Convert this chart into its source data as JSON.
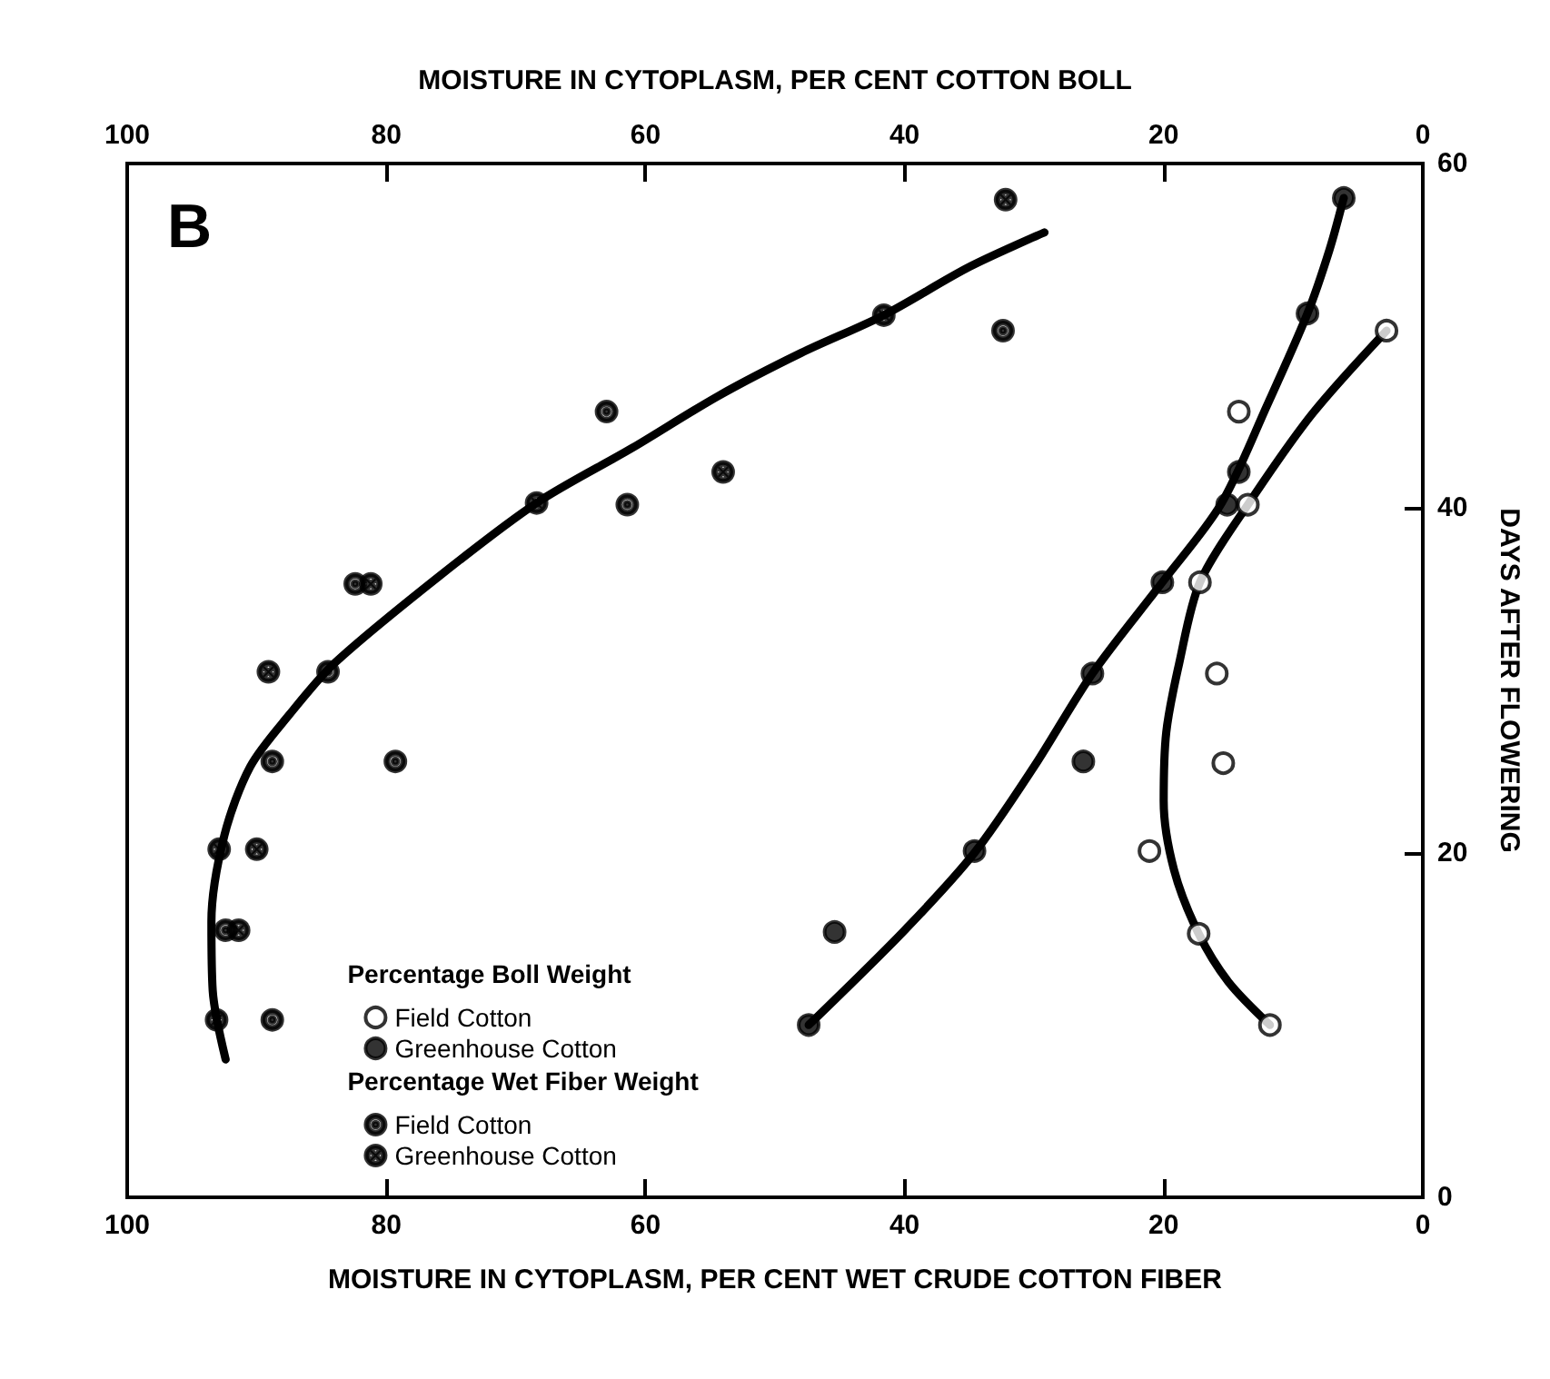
{
  "chart_data": {
    "type": "scatter",
    "xlabel": "MOISTURE IN CYTOPLASM, PER CENT WET CRUDE COTTON FIBER",
    "x2label": "MOISTURE IN CYTOPLASM, PER CENT COTTON BOLL",
    "ylabel": "DAYS AFTER FLOWERING",
    "xlim": [
      100,
      0
    ],
    "xticks": [
      100,
      80,
      60,
      40,
      20,
      0
    ],
    "x2lim": [
      100,
      0
    ],
    "x2ticks": [
      100,
      80,
      60,
      40,
      20,
      0
    ],
    "ylim": [
      0,
      60
    ],
    "yticks": [
      0,
      20,
      40,
      60
    ],
    "annotations": [
      "B"
    ],
    "legend_title": [
      "Percentage Boll Weight",
      "Percentage Wet Fiber Weight"
    ],
    "legend": "bottom left",
    "grid": false,
    "series": [
      {
        "name": "Field Cotton",
        "axis": "x2",
        "marker": "circle-open",
        "color": "#000000",
        "x": [
          2.8,
          14.2,
          13.5,
          17.2,
          15.9,
          15.4,
          21.1,
          17.3,
          11.8
        ],
        "values": [
          50.3,
          45.6,
          40.2,
          35.7,
          30.4,
          25.2,
          20.1,
          15.3,
          10.0
        ]
      },
      {
        "name": "Greenhouse Cotton",
        "axis": "x2",
        "marker": "circle",
        "color": "#000000",
        "x": [
          6.1,
          8.9,
          14.2,
          15.1,
          20.1,
          25.5,
          26.2,
          34.6,
          45.4,
          47.4
        ],
        "values": [
          58.0,
          51.3,
          42.1,
          40.2,
          35.7,
          30.4,
          25.3,
          20.1,
          15.4,
          10.0
        ]
      },
      {
        "name": "Field Cotton",
        "marker": "circle-dot",
        "color": "#000000",
        "x": [
          32.4,
          63.0,
          61.4,
          82.4,
          84.5,
          88.8,
          79.3,
          92.4,
          88.8
        ],
        "values": [
          50.3,
          45.6,
          40.2,
          35.6,
          30.5,
          25.3,
          25.3,
          15.5,
          10.3
        ]
      },
      {
        "name": "Greenhouse Cotton",
        "marker": "circle-cross",
        "color": "#000000",
        "x": [
          32.2,
          41.6,
          54.0,
          68.4,
          81.2,
          89.1,
          90.0,
          92.9,
          91.4,
          93.1
        ],
        "values": [
          57.9,
          51.2,
          42.1,
          40.3,
          35.6,
          30.5,
          20.2,
          20.2,
          15.5,
          10.3
        ]
      },
      {
        "type": "line",
        "axis": "x2",
        "marker": "none",
        "color": "#000000",
        "x": [
          11.8,
          15.0,
          17.3,
          19.2,
          20.0,
          19.8,
          18.8,
          17.2,
          13.5,
          8.5,
          2.8
        ],
        "values": [
          10.0,
          12.5,
          15.3,
          19.0,
          23.0,
          27.0,
          31.0,
          35.7,
          40.2,
          45.5,
          50.3
        ]
      },
      {
        "type": "line",
        "axis": "x2",
        "marker": "none",
        "color": "#000000",
        "x": [
          47.4,
          40.0,
          34.6,
          30.0,
          25.5,
          20.1,
          15.6,
          12.0,
          8.9,
          7.2,
          6.1
        ],
        "values": [
          10.0,
          15.5,
          20.0,
          25.0,
          30.4,
          35.7,
          40.2,
          46.0,
          51.3,
          55.0,
          58.0
        ]
      },
      {
        "type": "line",
        "marker": "none",
        "color": "#000000",
        "x": [
          92.4,
          93.4,
          93.5,
          92.5,
          90.5,
          87.5,
          84.0,
          76.0,
          68.4,
          61.0,
          54.4,
          48.0,
          41.6,
          35.0,
          29.2
        ],
        "values": [
          8.0,
          12.0,
          16.0,
          21.0,
          25.0,
          28.0,
          31.0,
          36.0,
          40.3,
          43.5,
          46.5,
          49.0,
          51.2,
          54.0,
          56.0
        ]
      }
    ]
  }
}
